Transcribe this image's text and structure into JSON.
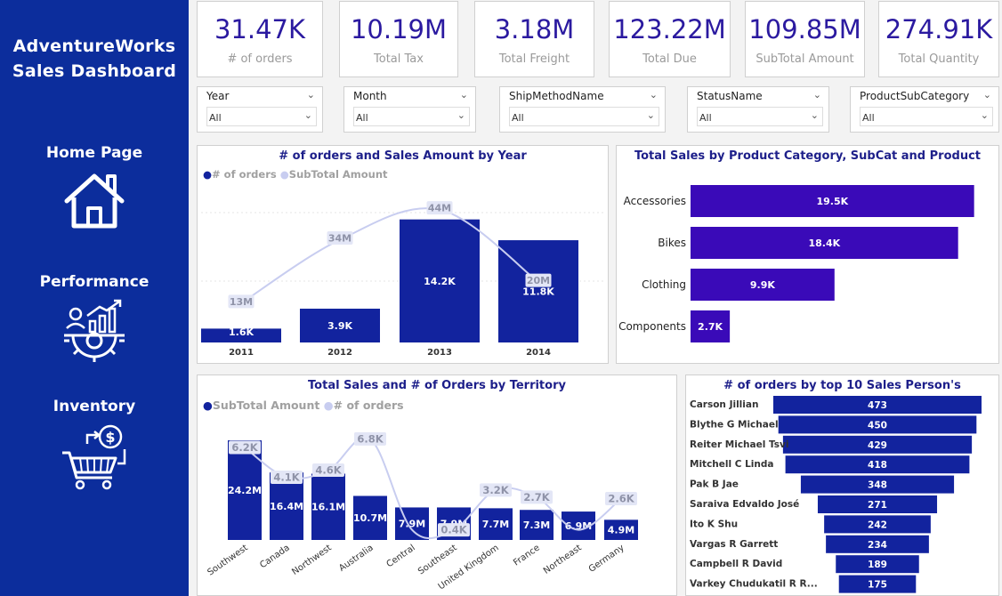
{
  "sidebar": {
    "brand_line1": "AdventureWorks",
    "brand_line2": "Sales Dashboard",
    "nav": [
      {
        "label": "Home Page",
        "icon": "house-icon"
      },
      {
        "label": "Performance",
        "icon": "performance-icon"
      },
      {
        "label": "Inventory",
        "icon": "inventory-cart-icon"
      }
    ]
  },
  "kpis": [
    {
      "value": "31.47K",
      "label": "# of orders"
    },
    {
      "value": "10.19M",
      "label": "Total Tax"
    },
    {
      "value": "3.18M",
      "label": "Total Freight"
    },
    {
      "value": "123.22M",
      "label": "Total Due"
    },
    {
      "value": "109.85M",
      "label": "SubTotal Amount"
    },
    {
      "value": "274.91K",
      "label": "Total Quantity"
    }
  ],
  "slicers": [
    {
      "title": "Year",
      "value": "All"
    },
    {
      "title": "Month",
      "value": "All"
    },
    {
      "title": "ShipMethodName",
      "value": "All"
    },
    {
      "title": "StatusName",
      "value": "All"
    },
    {
      "title": "ProductSubCategory",
      "value": "All"
    }
  ],
  "colors": {
    "bar": "#12239e",
    "bar_purple": "#3a0ab8",
    "line": "#c8cdf0",
    "title": "#1d1f8a"
  },
  "chart_data": [
    {
      "type": "bar",
      "title": "# of orders and Sales Amount by Year",
      "legend": [
        "# of orders",
        "SubTotal Amount"
      ],
      "legend_placement": "top-left",
      "categories": [
        "2011",
        "2012",
        "2013",
        "2014"
      ],
      "series": [
        {
          "name": "# of orders",
          "values": [
            1.6,
            3.9,
            14.2,
            11.8
          ],
          "labels": [
            "1.6K",
            "3.9K",
            "14.2K",
            "11.8K"
          ]
        },
        {
          "name": "SubTotal Amount",
          "values": [
            13,
            34,
            44,
            20
          ],
          "labels": [
            "13M",
            "34M",
            "44M",
            "20M"
          ]
        }
      ]
    },
    {
      "type": "bar",
      "orientation": "horizontal",
      "title": "Total Sales by Product Category, SubCat and Product",
      "categories": [
        "Accessories",
        "Bikes",
        "Clothing",
        "Components"
      ],
      "values": [
        19.5,
        18.4,
        9.9,
        2.7
      ],
      "labels": [
        "19.5K",
        "18.4K",
        "9.9K",
        "2.7K"
      ]
    },
    {
      "type": "bar",
      "title": "Total Sales and # of Orders by Territory",
      "legend": [
        "SubTotal Amount",
        "# of orders"
      ],
      "legend_placement": "top-left",
      "categories": [
        "Southwest",
        "Canada",
        "Northwest",
        "Australia",
        "Central",
        "Southeast",
        "United Kingdom",
        "France",
        "Northeast",
        "Germany"
      ],
      "series": [
        {
          "name": "SubTotal Amount",
          "values": [
            24.2,
            16.4,
            16.1,
            10.7,
            7.9,
            7.9,
            7.7,
            7.3,
            6.9,
            4.9
          ],
          "labels": [
            "24.2M",
            "16.4M",
            "16.1M",
            "10.7M",
            "7.9M",
            "7.9M",
            "7.7M",
            "7.3M",
            "6.9M",
            "4.9M"
          ]
        },
        {
          "name": "# of orders",
          "values": [
            6.2,
            4.1,
            4.6,
            6.8,
            0.4,
            0.4,
            3.2,
            2.7,
            0.4,
            2.6
          ],
          "labels": [
            "6.2K",
            "4.1K",
            "4.6K",
            "6.8K",
            "",
            "0.4K",
            "3.2K",
            "2.7K",
            "",
            "2.6K"
          ]
        }
      ]
    },
    {
      "type": "bar",
      "orientation": "horizontal-funnel",
      "title": "# of orders by top 10 Sales Person's",
      "categories": [
        "Carson Jillian",
        "Blythe G Michael",
        "Reiter Michael Tsvi",
        "Mitchell C Linda",
        "Pak B Jae",
        "Saraiva Edvaldo José",
        "Ito K Shu",
        "Vargas R Garrett",
        "Campbell R David",
        "Varkey Chudukatil R R..."
      ],
      "values": [
        473,
        450,
        429,
        418,
        348,
        271,
        242,
        234,
        189,
        175
      ],
      "labels": [
        "473",
        "450",
        "429",
        "418",
        "348",
        "271",
        "242",
        "234",
        "189",
        "175"
      ]
    }
  ]
}
